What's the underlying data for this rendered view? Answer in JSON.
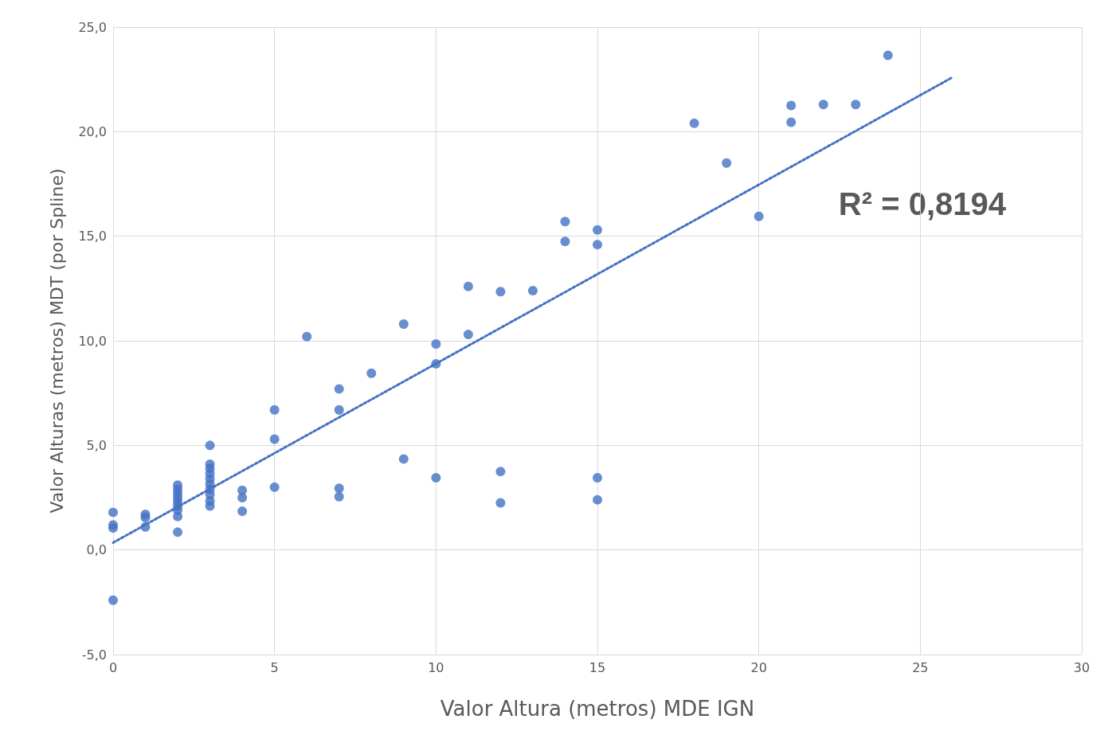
{
  "chart_data": {
    "type": "scatter",
    "xlabel": "Valor Altura (metros) MDE IGN",
    "ylabel": "Valor Alturas (metros) MDT (por Spline)",
    "xlim": [
      0,
      30
    ],
    "xticks": [
      0,
      5,
      10,
      15,
      20,
      25,
      30
    ],
    "ylim": [
      -5,
      25
    ],
    "yticks": [
      {
        "value": -5,
        "label": "-5,0"
      },
      {
        "value": 0,
        "label": "0,0"
      },
      {
        "value": 5,
        "label": "5,0"
      },
      {
        "value": 10,
        "label": "10,0"
      },
      {
        "value": 15,
        "label": "15,0"
      },
      {
        "value": 20,
        "label": "20,0"
      },
      {
        "value": 25,
        "label": "25,0"
      }
    ],
    "grid": true,
    "annotations": [
      "R² = 0,8194"
    ],
    "series": [
      {
        "color": "#4472c4",
        "marker": "circle",
        "x": [
          0,
          0,
          0,
          0,
          1,
          1,
          1,
          2,
          2,
          2,
          2,
          2,
          2,
          2,
          2,
          2,
          3,
          3,
          3,
          3,
          3,
          3,
          3,
          3,
          3,
          3,
          4,
          4,
          4,
          5,
          5,
          5,
          6,
          7,
          7,
          7,
          7,
          8,
          9,
          9,
          10,
          10,
          10,
          11,
          11,
          12,
          12,
          12,
          13,
          14,
          14,
          15,
          15,
          15,
          15,
          18,
          19,
          20,
          21,
          21,
          22,
          23,
          24
        ],
        "values": [
          1.8,
          1.2,
          1.05,
          -2.4,
          1.7,
          1.55,
          1.1,
          3.1,
          2.9,
          2.7,
          2.5,
          2.3,
          2.1,
          1.9,
          1.6,
          0.85,
          5.0,
          4.1,
          3.9,
          3.65,
          3.4,
          3.15,
          2.9,
          2.65,
          2.35,
          2.1,
          2.85,
          2.5,
          1.85,
          6.7,
          5.3,
          3.0,
          10.2,
          7.7,
          6.7,
          2.95,
          2.55,
          8.45,
          10.8,
          4.35,
          9.85,
          8.9,
          3.45,
          12.6,
          10.3,
          12.35,
          3.75,
          2.25,
          12.4,
          15.7,
          14.75,
          15.3,
          14.6,
          3.45,
          2.4,
          20.4,
          18.5,
          15.95,
          21.25,
          20.45,
          21.3,
          21.3,
          23.65
        ]
      },
      {
        "type": "line",
        "color": "#4472c4",
        "marker": "none",
        "line_style": "dotted",
        "x": [
          0,
          26
        ],
        "values": [
          0.35,
          22.6
        ]
      }
    ]
  }
}
